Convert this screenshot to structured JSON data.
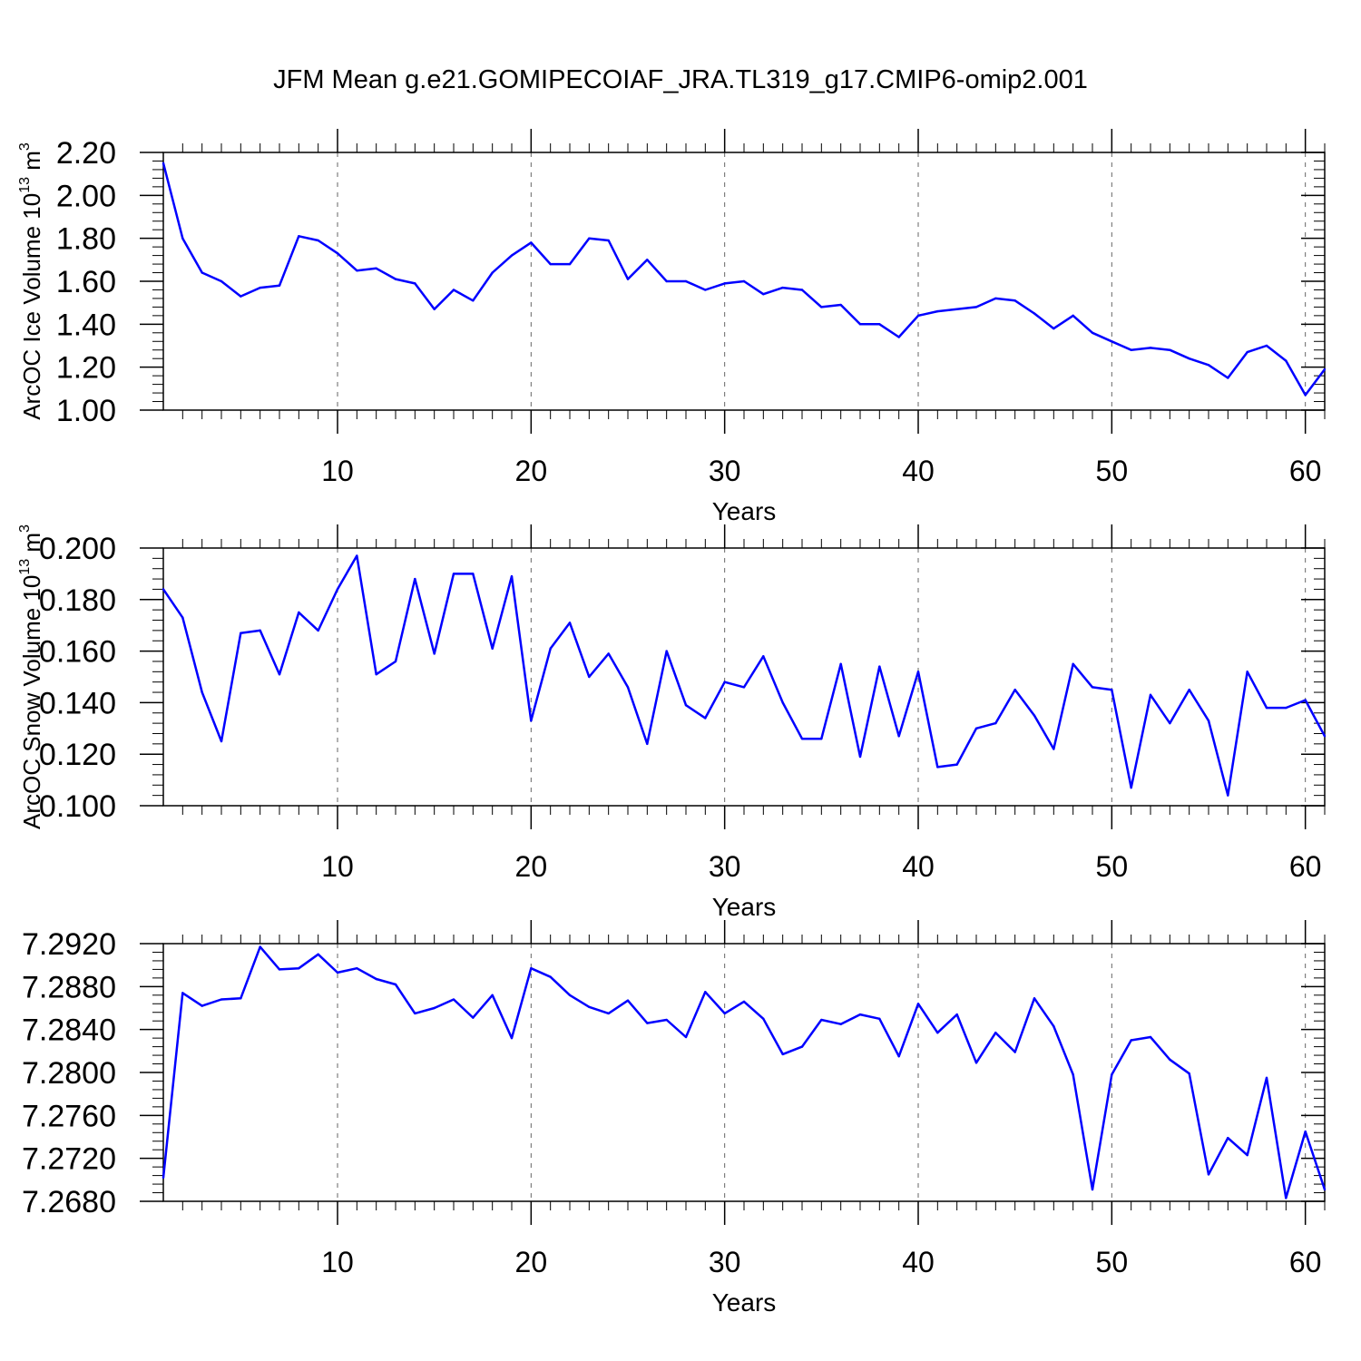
{
  "title": "JFM Mean g.e21.GOMIPECOIAF_JRA.TL319_g17.CMIP6-omip2.001",
  "colors": {
    "line": "#0000ff",
    "axis": "#000000",
    "grid": "#666666"
  },
  "chart_data": [
    {
      "type": "line",
      "title": "",
      "xlabel": "Years",
      "ylabel": "ArcOC Ice Volume 10",
      "ylabel_exp": "13",
      "ylabel_unit": "m",
      "ylabel_unit_exp": "3",
      "xlim": [
        1,
        61
      ],
      "ylim": [
        1.0,
        2.2
      ],
      "xticks": [
        "10",
        "20",
        "30",
        "40",
        "50",
        "60"
      ],
      "yticks": [
        "1.00",
        "1.20",
        "1.40",
        "1.60",
        "1.80",
        "2.00",
        "2.20"
      ],
      "grid": "vertical dashed at major x ticks",
      "series": [
        {
          "x": [
            1,
            2,
            3,
            4,
            5,
            6,
            7,
            8,
            9,
            10,
            11,
            12,
            13,
            14,
            15,
            16,
            17,
            18,
            19,
            20,
            21,
            22,
            23,
            24,
            25,
            26,
            27,
            28,
            29,
            30,
            31,
            32,
            33,
            34,
            35,
            36,
            37,
            38,
            39,
            40,
            41,
            42,
            43,
            44,
            45,
            46,
            47,
            48,
            49,
            50,
            51,
            52,
            53,
            54,
            55,
            56,
            57,
            58,
            59,
            60,
            61
          ],
          "values": [
            2.15,
            1.8,
            1.64,
            1.6,
            1.53,
            1.57,
            1.58,
            1.81,
            1.79,
            1.73,
            1.65,
            1.66,
            1.61,
            1.59,
            1.47,
            1.56,
            1.51,
            1.64,
            1.72,
            1.78,
            1.68,
            1.68,
            1.8,
            1.79,
            1.61,
            1.7,
            1.6,
            1.6,
            1.56,
            1.59,
            1.6,
            1.54,
            1.57,
            1.56,
            1.48,
            1.49,
            1.4,
            1.4,
            1.34,
            1.44,
            1.46,
            1.47,
            1.48,
            1.52,
            1.51,
            1.45,
            1.38,
            1.44,
            1.36,
            1.32,
            1.28,
            1.29,
            1.28,
            1.24,
            1.21,
            1.15,
            1.27,
            1.3,
            1.23,
            1.07,
            1.19
          ]
        }
      ]
    },
    {
      "type": "line",
      "title": "",
      "xlabel": "Years",
      "ylabel": "ArcOC Snow Volume 10",
      "ylabel_exp": "13",
      "ylabel_unit": "m",
      "ylabel_unit_exp": "3",
      "xlim": [
        1,
        61
      ],
      "ylim": [
        0.1,
        0.2
      ],
      "xticks": [
        "10",
        "20",
        "30",
        "40",
        "50",
        "60"
      ],
      "yticks": [
        "0.100",
        "0.120",
        "0.140",
        "0.160",
        "0.180",
        "0.200"
      ],
      "grid": "vertical dashed at major x ticks",
      "series": [
        {
          "x": [
            1,
            2,
            3,
            4,
            5,
            6,
            7,
            8,
            9,
            10,
            11,
            12,
            13,
            14,
            15,
            16,
            17,
            18,
            19,
            20,
            21,
            22,
            23,
            24,
            25,
            26,
            27,
            28,
            29,
            30,
            31,
            32,
            33,
            34,
            35,
            36,
            37,
            38,
            39,
            40,
            41,
            42,
            43,
            44,
            45,
            46,
            47,
            48,
            49,
            50,
            51,
            52,
            53,
            54,
            55,
            56,
            57,
            58,
            59,
            60,
            61
          ],
          "values": [
            0.184,
            0.173,
            0.144,
            0.125,
            0.167,
            0.168,
            0.151,
            0.175,
            0.168,
            0.184,
            0.197,
            0.151,
            0.156,
            0.188,
            0.159,
            0.19,
            0.19,
            0.161,
            0.189,
            0.133,
            0.161,
            0.171,
            0.15,
            0.159,
            0.146,
            0.124,
            0.16,
            0.139,
            0.134,
            0.148,
            0.146,
            0.158,
            0.14,
            0.126,
            0.126,
            0.155,
            0.119,
            0.154,
            0.127,
            0.152,
            0.115,
            0.116,
            0.13,
            0.132,
            0.145,
            0.135,
            0.122,
            0.155,
            0.146,
            0.145,
            0.107,
            0.143,
            0.132,
            0.145,
            0.133,
            0.104,
            0.152,
            0.138,
            0.138,
            0.141,
            0.127
          ]
        }
      ]
    },
    {
      "type": "line",
      "title": "",
      "xlabel": "Years",
      "ylabel": "",
      "xlim": [
        1,
        61
      ],
      "ylim": [
        7.268,
        7.292
      ],
      "xticks": [
        "10",
        "20",
        "30",
        "40",
        "50",
        "60"
      ],
      "yticks": [
        "7.2680",
        "7.2720",
        "7.2760",
        "7.2800",
        "7.2840",
        "7.2880",
        "7.2920"
      ],
      "grid": "vertical dashed at major x ticks",
      "series": [
        {
          "x": [
            1,
            2,
            3,
            4,
            5,
            6,
            7,
            8,
            9,
            10,
            11,
            12,
            13,
            14,
            15,
            16,
            17,
            18,
            19,
            20,
            21,
            22,
            23,
            24,
            25,
            26,
            27,
            28,
            29,
            30,
            31,
            32,
            33,
            34,
            35,
            36,
            37,
            38,
            39,
            40,
            41,
            42,
            43,
            44,
            45,
            46,
            47,
            48,
            49,
            50,
            51,
            52,
            53,
            54,
            55,
            56,
            57,
            58,
            59,
            60,
            61
          ],
          "values": [
            7.2702,
            7.2874,
            7.2862,
            7.2868,
            7.2869,
            7.2917,
            7.2896,
            7.2897,
            7.291,
            7.2893,
            7.2897,
            7.2887,
            7.2882,
            7.2855,
            7.286,
            7.2868,
            7.2851,
            7.2872,
            7.2832,
            7.2897,
            7.2889,
            7.2872,
            7.2861,
            7.2855,
            7.2867,
            7.2846,
            7.2849,
            7.2833,
            7.2875,
            7.2855,
            7.2866,
            7.285,
            7.2817,
            7.2824,
            7.2849,
            7.2845,
            7.2854,
            7.285,
            7.2815,
            7.2864,
            7.2837,
            7.2854,
            7.2809,
            7.2837,
            7.2819,
            7.2869,
            7.2843,
            7.2798,
            7.2691,
            7.2798,
            7.283,
            7.2833,
            7.2812,
            7.2799,
            7.2705,
            7.2739,
            7.2723,
            7.2795,
            7.2683,
            7.2745,
            7.2691
          ]
        }
      ]
    }
  ]
}
